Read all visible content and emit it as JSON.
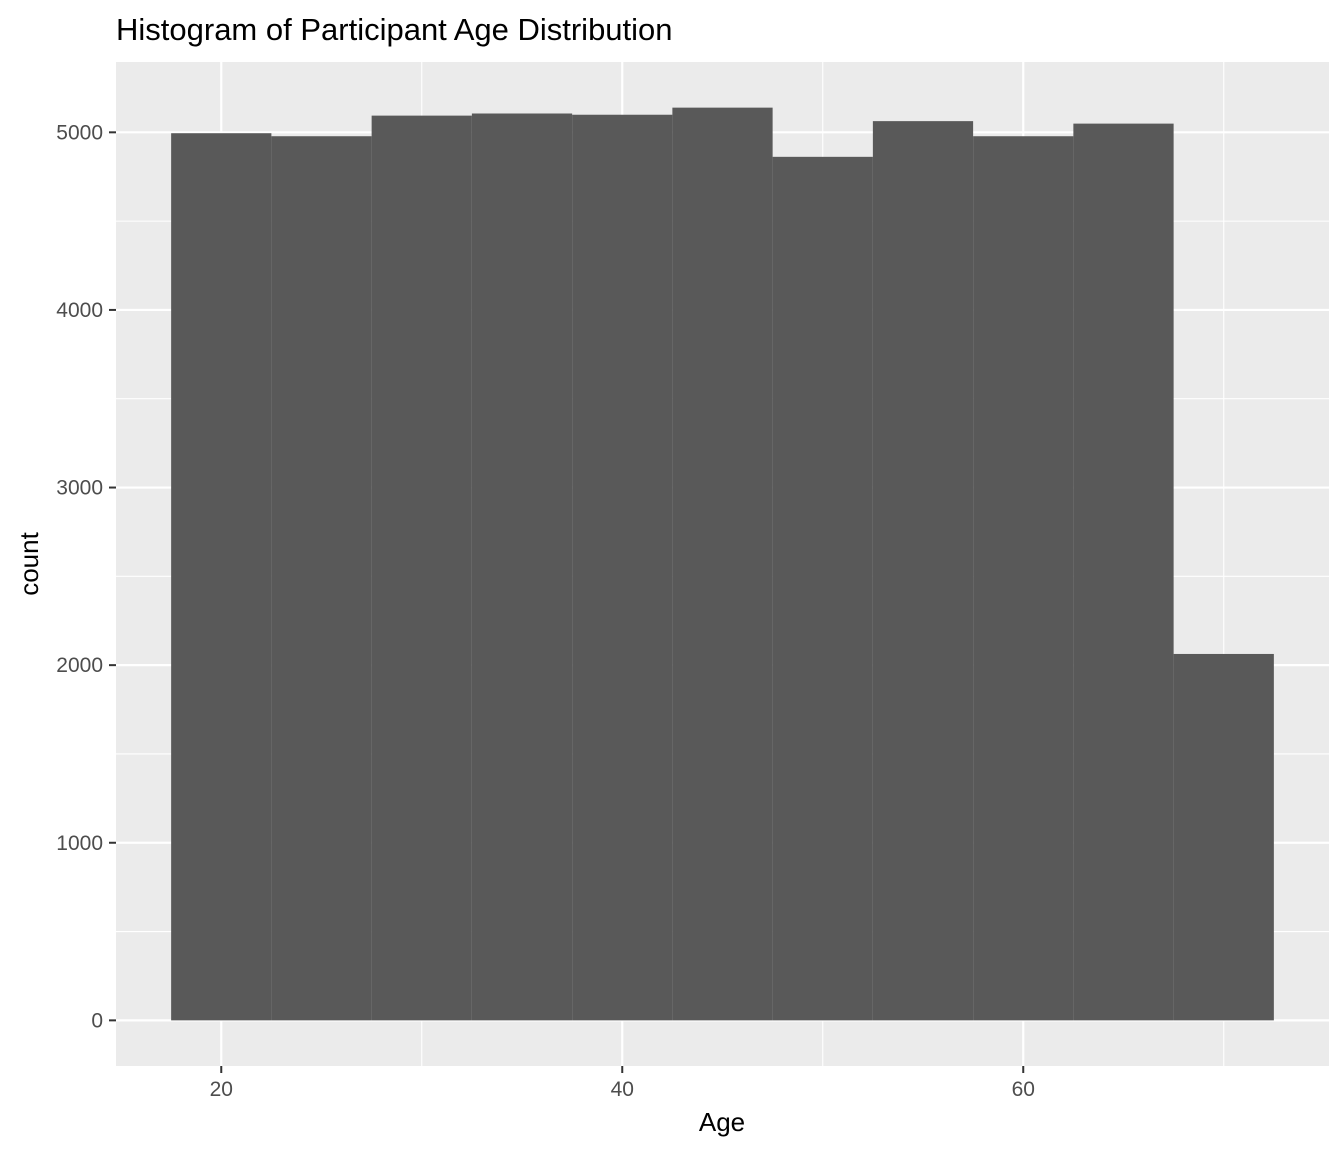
{
  "chart_data": {
    "type": "bar",
    "title": "Histogram of Participant Age Distribution",
    "xlabel": "Age",
    "ylabel": "count",
    "bin_width": 5,
    "bins": [
      {
        "x_min": 17.5,
        "x_max": 22.5,
        "count": 4995
      },
      {
        "x_min": 22.5,
        "x_max": 27.5,
        "count": 4978
      },
      {
        "x_min": 27.5,
        "x_max": 32.5,
        "count": 5094
      },
      {
        "x_min": 32.5,
        "x_max": 37.5,
        "count": 5106
      },
      {
        "x_min": 37.5,
        "x_max": 42.5,
        "count": 5099
      },
      {
        "x_min": 42.5,
        "x_max": 47.5,
        "count": 5139
      },
      {
        "x_min": 47.5,
        "x_max": 52.5,
        "count": 4862
      },
      {
        "x_min": 52.5,
        "x_max": 57.5,
        "count": 5063
      },
      {
        "x_min": 57.5,
        "x_max": 62.5,
        "count": 4978
      },
      {
        "x_min": 62.5,
        "x_max": 67.5,
        "count": 5049
      },
      {
        "x_min": 67.5,
        "x_max": 72.5,
        "count": 2063
      }
    ],
    "xlim": [
      14.75,
      75.25
    ],
    "ylim": [
      -256.95,
      5395.95
    ],
    "x_ticks": [
      20,
      40,
      60
    ],
    "x_tick_labels": [
      "20",
      "40",
      "60"
    ],
    "x_minor_ticks": [
      30,
      50,
      70
    ],
    "y_ticks": [
      0,
      1000,
      2000,
      3000,
      4000,
      5000
    ],
    "y_tick_labels": [
      "0",
      "1000",
      "2000",
      "3000",
      "4000",
      "5000"
    ],
    "y_minor_ticks": [
      500,
      1500,
      2500,
      3500,
      4500
    ],
    "grid": true,
    "legend": "none",
    "colors": {
      "bar_fill": "#595959",
      "panel_background": "#ebebeb",
      "grid_line": "#ffffff",
      "tick_label": "#4d4d4d",
      "tick_mark": "#333333",
      "text": "#000000"
    }
  }
}
